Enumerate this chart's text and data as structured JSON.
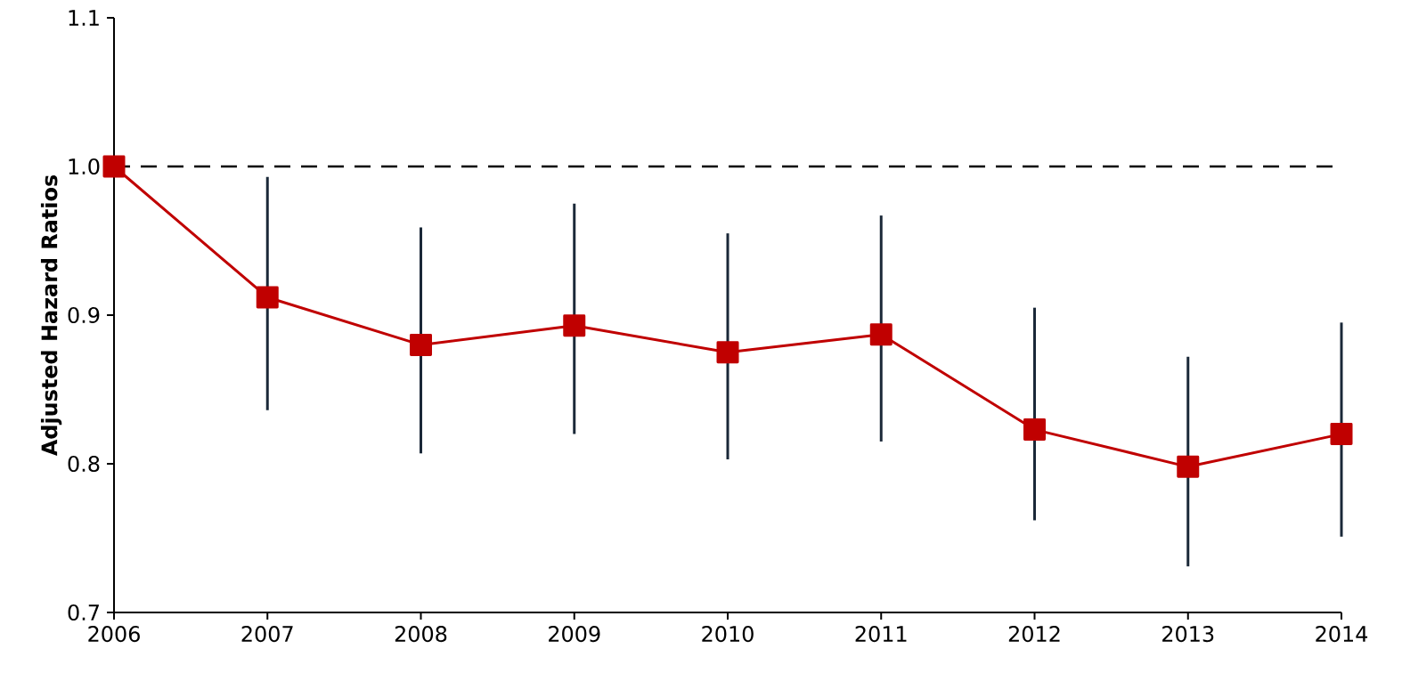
{
  "chart_data": {
    "type": "line",
    "ylabel": "Adjusted Hazard Ratios",
    "x": [
      2006,
      2007,
      2008,
      2009,
      2010,
      2011,
      2012,
      2013,
      2014
    ],
    "series": [
      {
        "color": "#c00000",
        "values": [
          1.0,
          0.912,
          0.88,
          0.893,
          0.875,
          0.887,
          0.823,
          0.798,
          0.82
        ],
        "errors": [
          null,
          [
            0.836,
            0.993
          ],
          [
            0.807,
            0.959
          ],
          [
            0.82,
            0.975
          ],
          [
            0.803,
            0.955
          ],
          [
            0.815,
            0.967
          ],
          [
            0.762,
            0.905
          ],
          [
            0.731,
            0.872
          ],
          [
            0.751,
            0.895
          ]
        ]
      }
    ],
    "xlim": [
      2006,
      2014
    ],
    "xticks": [
      2006,
      2007,
      2008,
      2009,
      2010,
      2011,
      2012,
      2013,
      2014
    ],
    "ylim": [
      0.7,
      1.1
    ],
    "yticks": [
      0.7,
      0.8,
      0.9,
      {
        "value": 1.0,
        "label": "1.0"
      },
      1.1
    ],
    "ref_lines": [
      {
        "axis": "y",
        "value": 1.0,
        "color": "#000000",
        "line_style": "dashed"
      }
    ],
    "marker": "square",
    "line_style": "solid"
  }
}
